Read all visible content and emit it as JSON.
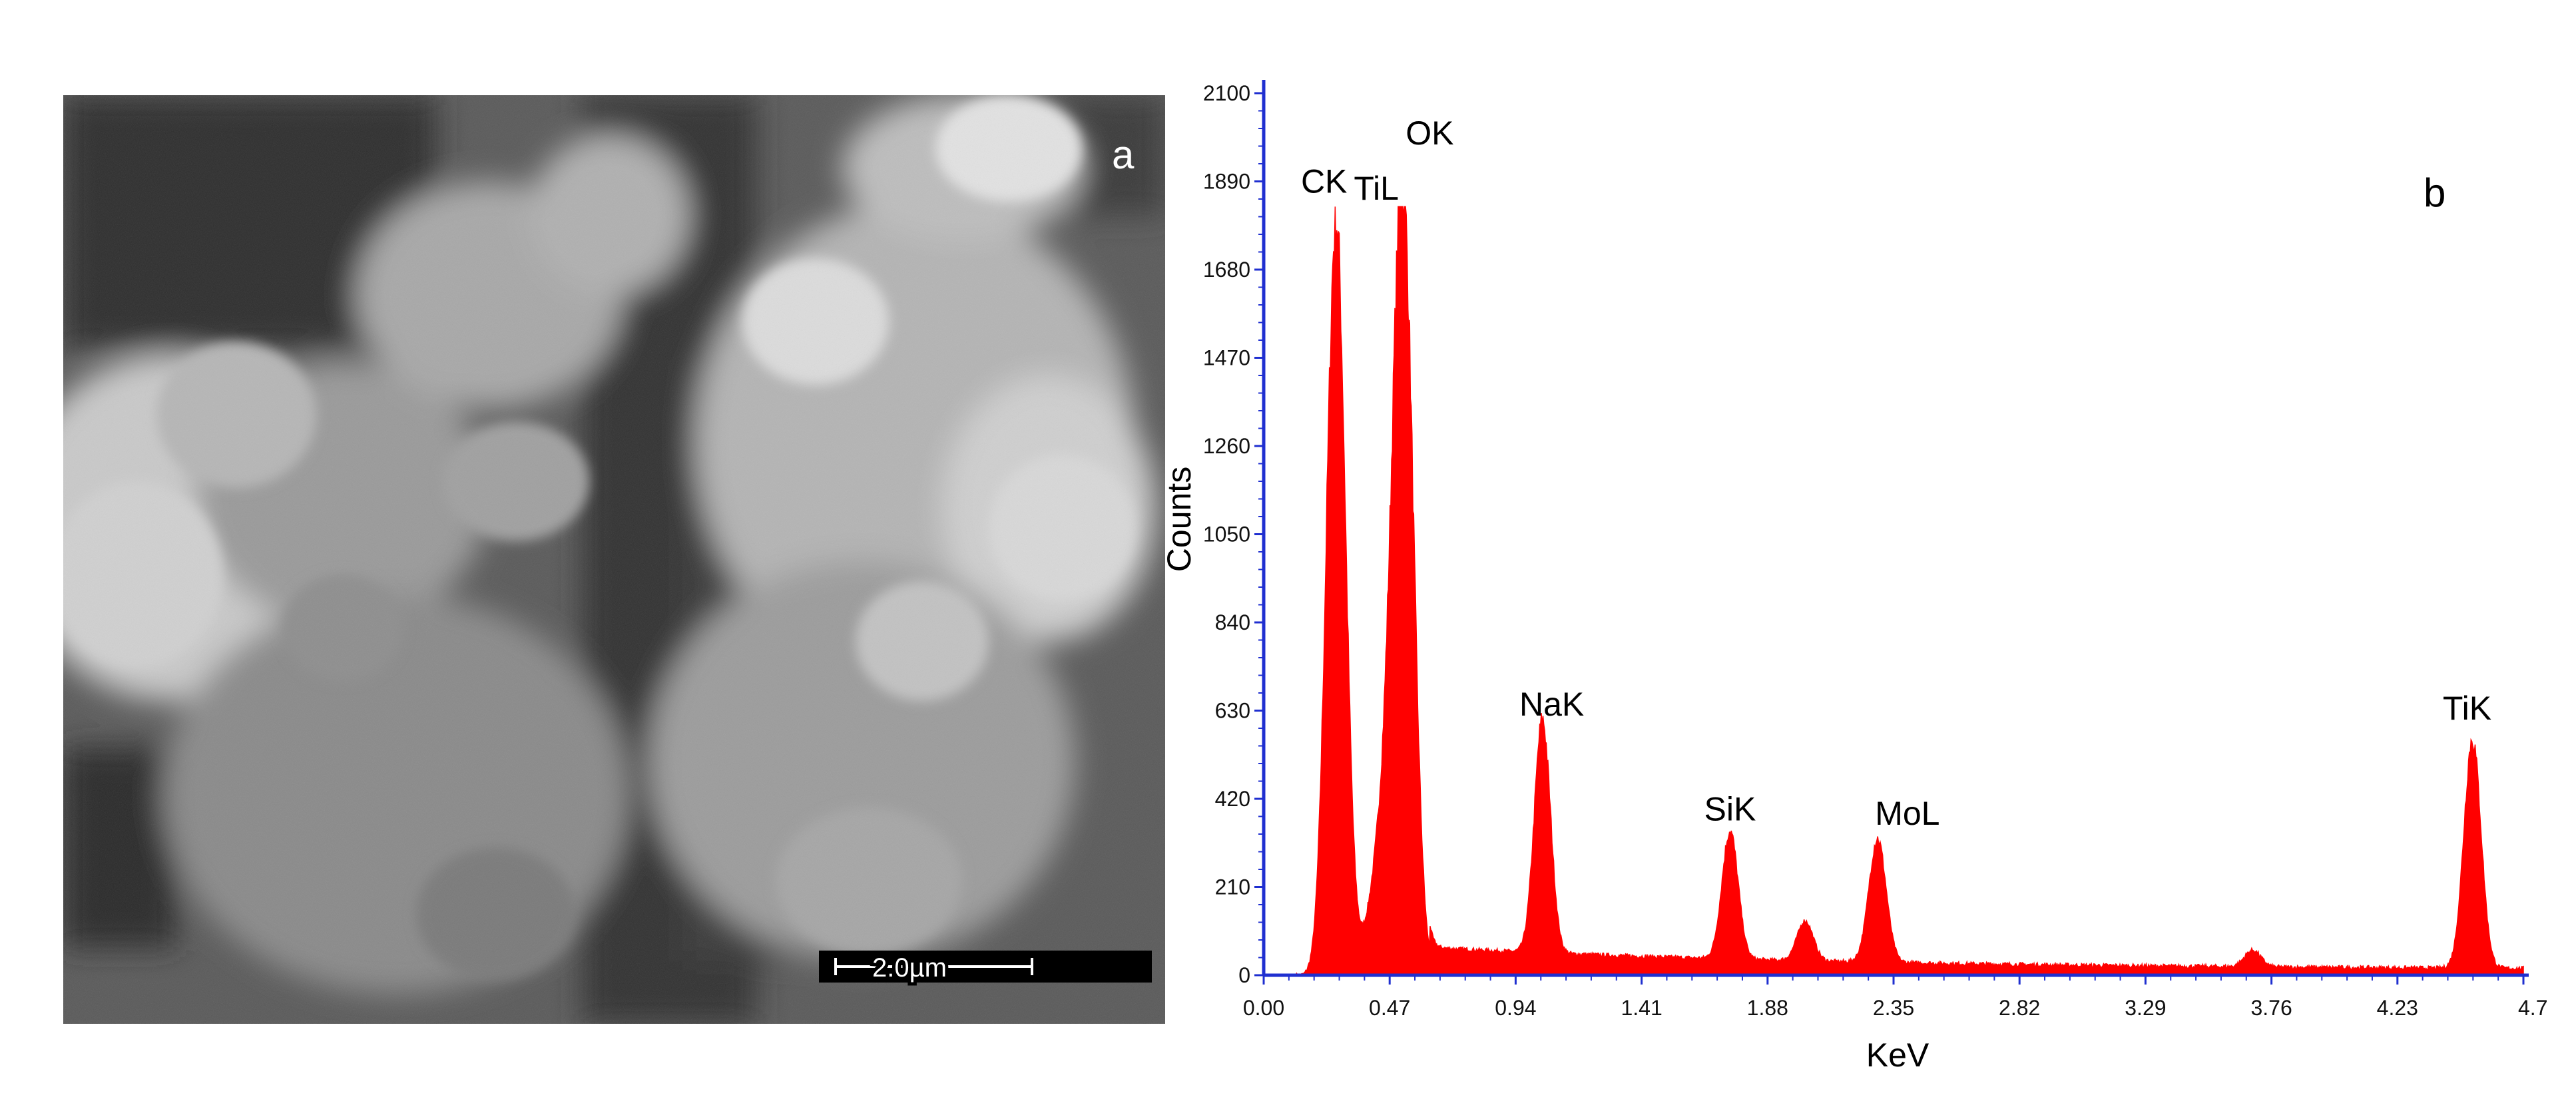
{
  "panel_a": {
    "label": "a",
    "scale_bar": "2.0µm"
  },
  "chart_data": {
    "type": "area",
    "panel_label": "b",
    "xlabel": "KeV",
    "ylabel": "Counts",
    "xlim": [
      0.0,
      4.7
    ],
    "ylim": [
      0,
      2100
    ],
    "x_ticks": [
      "0.00",
      "0.47",
      "0.94",
      "1.41",
      "1.88",
      "2.35",
      "2.82",
      "3.29",
      "3.76",
      "4.23",
      "4.7"
    ],
    "y_ticks": [
      "0",
      "210",
      "420",
      "630",
      "840",
      "1050",
      "1260",
      "1470",
      "1680",
      "1890",
      "2100"
    ],
    "grid": false,
    "color": "#ff0000",
    "peaks": [
      {
        "label": "CK",
        "x": 0.27,
        "y": 1800
      },
      {
        "label": "OK",
        "x": 0.52,
        "y": 1780
      },
      {
        "label": "TiL",
        "x": 0.45,
        "y": 330
      },
      {
        "label": "NaK",
        "x": 1.04,
        "y": 555
      },
      {
        "label": "SiK",
        "x": 1.74,
        "y": 305
      },
      {
        "label": "MoL",
        "x": 2.29,
        "y": 295
      },
      {
        "label": "TiK",
        "x": 4.51,
        "y": 545
      }
    ],
    "minor_peaks": [
      {
        "x": 2.02,
        "y": 95
      },
      {
        "x": 3.69,
        "y": 40
      }
    ],
    "annotations": [
      "CK",
      "TiL",
      "OK",
      "NaK",
      "SiK",
      "MoL",
      "TiK"
    ]
  }
}
